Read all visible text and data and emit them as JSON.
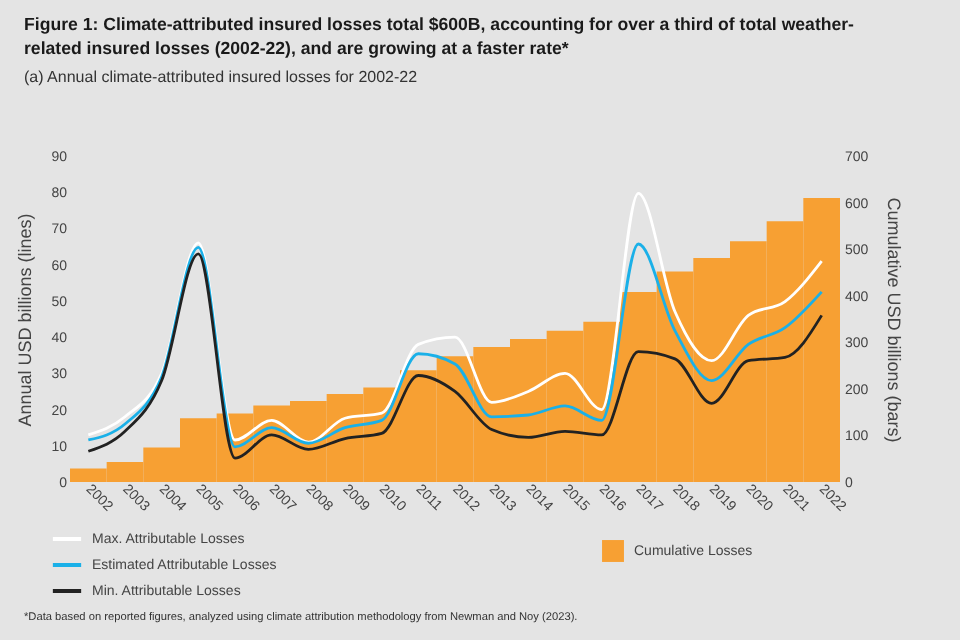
{
  "chart_data": {
    "type": "line",
    "title": "Figure 1: Climate-attributed insured losses total $600B, accounting for over a third of total weather-related insured losses (2002-22), and are growing at a faster rate*",
    "subtitle": "(a) Annual climate-attributed insured losses for 2002-22",
    "categories": [
      "2002",
      "2003",
      "2004",
      "2005",
      "2006",
      "2007",
      "2008",
      "2009",
      "2010",
      "2011",
      "2012",
      "2013",
      "2014",
      "2015",
      "2016",
      "2017",
      "2018",
      "2019",
      "2020",
      "2021",
      "2022"
    ],
    "series": [
      {
        "name": "Cumulative Losses",
        "type": "bar",
        "axis": "y2",
        "color": "#f7a033",
        "values": [
          29,
          43,
          74,
          137,
          147,
          164,
          174,
          189,
          203,
          240,
          270,
          290,
          307,
          325,
          344,
          408,
          452,
          481,
          517,
          560,
          610
        ]
      },
      {
        "name": "Max. Attributable Losses",
        "color": "#ffffff",
        "values": [
          13,
          18,
          30,
          66,
          11.6,
          17,
          11,
          17.6,
          19,
          38,
          40,
          22,
          25,
          30,
          20,
          79.7,
          47,
          33.5,
          46,
          49.8,
          61
        ]
      },
      {
        "name": "Estimated Attributable Losses",
        "color": "#1ab0e8",
        "values": [
          11.6,
          16,
          29,
          64.8,
          9.7,
          15,
          10.7,
          15,
          17,
          35.4,
          32.6,
          18,
          18.5,
          21,
          17,
          65.7,
          41.7,
          28,
          38,
          42.6,
          52.5
        ]
      },
      {
        "name": "Min. Attributable Losses",
        "color": "#222222",
        "values": [
          8.5,
          14,
          28,
          63,
          6.6,
          13,
          9,
          12,
          13.4,
          29.4,
          25,
          14.5,
          12.3,
          14,
          13,
          36,
          34,
          21.7,
          33.5,
          34.4,
          46
        ]
      }
    ],
    "ylabel": "Annual USD billions (lines)",
    "y2label": "Cumulative USD billions (bars)",
    "ylim": [
      0,
      90
    ],
    "yticks": [
      0,
      10,
      20,
      30,
      40,
      50,
      60,
      70,
      80,
      90
    ],
    "y2lim": [
      0,
      700
    ],
    "y2ticks": [
      0,
      100,
      200,
      300,
      400,
      500,
      600,
      700
    ],
    "grid": false,
    "legend": "bottom",
    "annotations": [
      "*Data based on reported figures, analyzed using climate attribution methodology from Newman and Noy (2023)."
    ]
  }
}
